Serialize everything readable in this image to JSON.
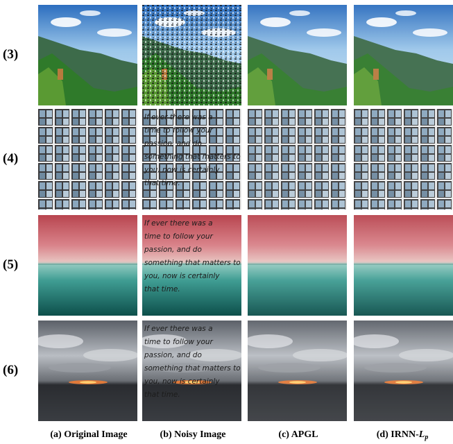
{
  "rows": [
    {
      "label": "(3)"
    },
    {
      "label": "(4)"
    },
    {
      "label": "(5)"
    },
    {
      "label": "(6)"
    }
  ],
  "columns": [
    {
      "caption": "(a) Original Image"
    },
    {
      "caption": "(b) Noisy Image"
    },
    {
      "caption": "(c) APGL"
    },
    {
      "caption": "(d) IRNN-",
      "italic": "L",
      "subscript": "p"
    }
  ],
  "overlay_text": [
    "If ever there was a",
    "time to follow your",
    "passion, and do",
    "something that matters to",
    "you, now is certainly",
    "that time."
  ]
}
